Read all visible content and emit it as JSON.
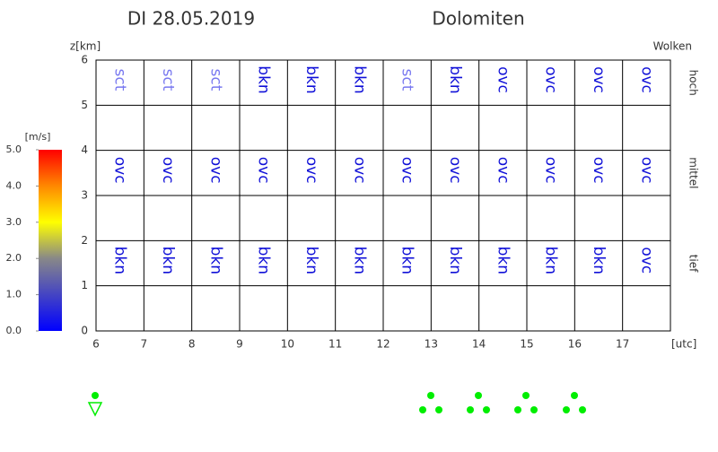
{
  "chart_data": {
    "type": "cloud-grid",
    "date": "DI 28.05.2019",
    "location": "Dolomiten",
    "ylabel": "z[km]",
    "xlabel": "[utc]",
    "legend_title": "Wolken",
    "xlim": [
      6,
      18
    ],
    "xticks": [
      6,
      7,
      8,
      9,
      10,
      11,
      12,
      13,
      14,
      15,
      16,
      17
    ],
    "ylim": [
      0,
      6
    ],
    "yticks": [
      0,
      1,
      2,
      3,
      4,
      5,
      6
    ],
    "grid": true,
    "cover_colors": {
      "sct": "#7878f0",
      "bkn": "#1010d8",
      "ovc": "#1010d8"
    },
    "layers": [
      {
        "name": "hoch",
        "base": 5,
        "top": 6,
        "values": [
          "sct",
          "sct",
          "sct",
          "bkn",
          "bkn",
          "bkn",
          "sct",
          "bkn",
          "ovc",
          "ovc",
          "ovc",
          "ovc"
        ]
      },
      {
        "name": "mittel",
        "base": 3,
        "top": 4,
        "values": [
          "ovc",
          "ovc",
          "ovc",
          "ovc",
          "ovc",
          "ovc",
          "ovc",
          "ovc",
          "ovc",
          "ovc",
          "ovc",
          "ovc"
        ]
      },
      {
        "name": "tief",
        "base": 1,
        "top": 2,
        "values": [
          "bkn",
          "bkn",
          "bkn",
          "bkn",
          "bkn",
          "bkn",
          "bkn",
          "bkn",
          "bkn",
          "bkn",
          "bkn",
          "ovc"
        ]
      }
    ],
    "colorbar": {
      "label": "[m/s]",
      "lim": [
        0,
        5
      ],
      "ticks": [
        {
          "value": 0,
          "label": "0.0"
        },
        {
          "value": 1,
          "label": "1.0"
        },
        {
          "value": 2,
          "label": "2.0"
        },
        {
          "value": 3,
          "label": "3.0"
        },
        {
          "value": 4,
          "label": "4.0"
        },
        {
          "value": 5,
          "label": "5.0"
        }
      ]
    }
  }
}
